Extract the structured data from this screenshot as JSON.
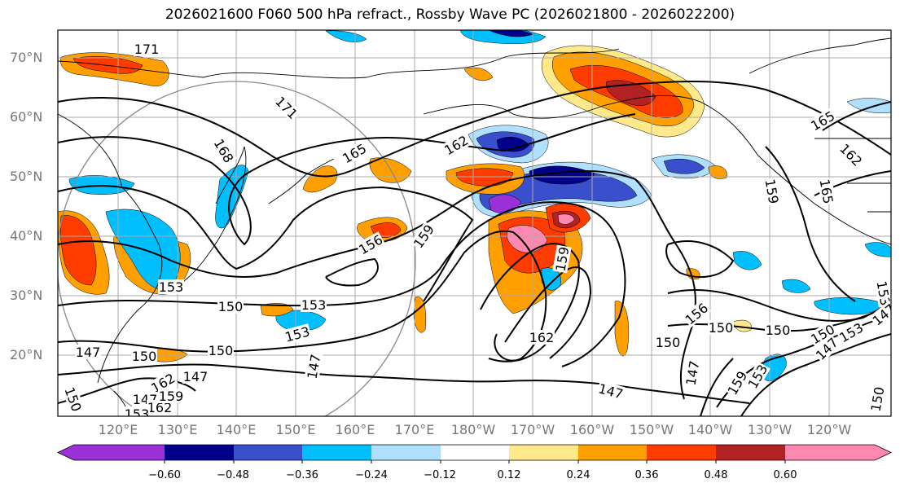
{
  "title": "2026021600 F060 500 hPa refract., Rossby Wave PC (2026021800 - 2026022200)",
  "lat_labels": [
    "70°N",
    "60°N",
    "50°N",
    "40°N",
    "30°N",
    "20°N"
  ],
  "lon_labels": [
    "120°E",
    "130°E",
    "140°E",
    "150°E",
    "160°E",
    "170°E",
    "180°W",
    "170°W",
    "160°W",
    "150°W",
    "140°W",
    "130°W",
    "120°W"
  ],
  "contour_labels": [
    "171",
    "171",
    "168",
    "165",
    "162",
    "165",
    "162",
    "165",
    "159",
    "156",
    "159",
    "159",
    "156",
    "153",
    "150",
    "153",
    "153",
    "150",
    "150",
    "150",
    "153",
    "153",
    "147",
    "147",
    "150",
    "150",
    "147",
    "147",
    "147",
    "162",
    "147",
    "150",
    "162",
    "159",
    "153",
    "147",
    "150",
    "147",
    "162",
    "159",
    "153",
    "150"
  ],
  "colorbar": {
    "ticks": [
      "−0.60",
      "−0.48",
      "−0.36",
      "−0.24",
      "−0.12",
      "0.12",
      "0.24",
      "0.36",
      "0.48",
      "0.60"
    ],
    "colors": [
      "#9b30d8",
      "#00008b",
      "#3a4fcc",
      "#00bfff",
      "#b0e0ff",
      "#ffffff",
      "#ffe98a",
      "#ffa000",
      "#ff3c00",
      "#b22222",
      "#ff88b0"
    ]
  },
  "fill_colors": {
    "purple": "#9b30d8",
    "navy": "#00008b",
    "blue": "#3a4fcc",
    "cyan": "#00bfff",
    "lightblue": "#b0e0ff",
    "yellow": "#ffe98a",
    "orange": "#ffa000",
    "redorange": "#ff3c00",
    "darkred": "#b22222",
    "pink": "#ff88b0"
  }
}
